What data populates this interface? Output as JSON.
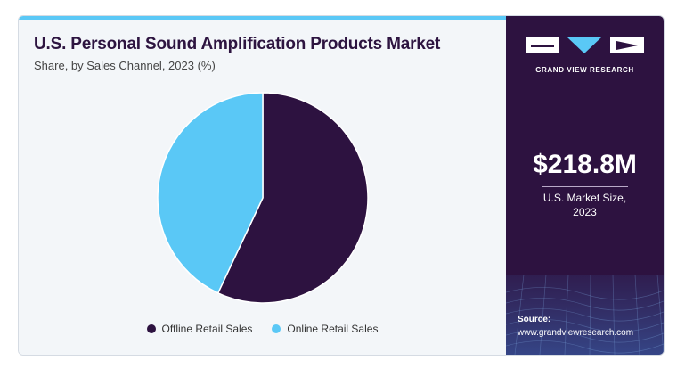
{
  "colors": {
    "offline": "#2d1240",
    "online": "#5ac8f6",
    "panel": "#2d1240",
    "accent": "#5ac8f6"
  },
  "chart_data": {
    "type": "pie",
    "title": "U.S. Personal Sound Amplification Products Market",
    "subtitle": "Share, by Sales Channel, 2023 (%)",
    "categories": [
      "Offline Retail Sales",
      "Online Retail Sales"
    ],
    "values": [
      57,
      43
    ],
    "legend_position": "bottom",
    "colors": [
      "#2d1240",
      "#5ac8f6"
    ]
  },
  "legend": {
    "items": [
      {
        "label": "Offline Retail Sales",
        "color": "#2d1240"
      },
      {
        "label": "Online Retail Sales",
        "color": "#5ac8f6"
      }
    ]
  },
  "sidebar": {
    "brand": "GRAND VIEW RESEARCH",
    "market_value": "$218.8M",
    "market_label_line1": "U.S. Market Size,",
    "market_label_line2": "2023",
    "source_label": "Source:",
    "source_url": "www.grandviewresearch.com"
  }
}
